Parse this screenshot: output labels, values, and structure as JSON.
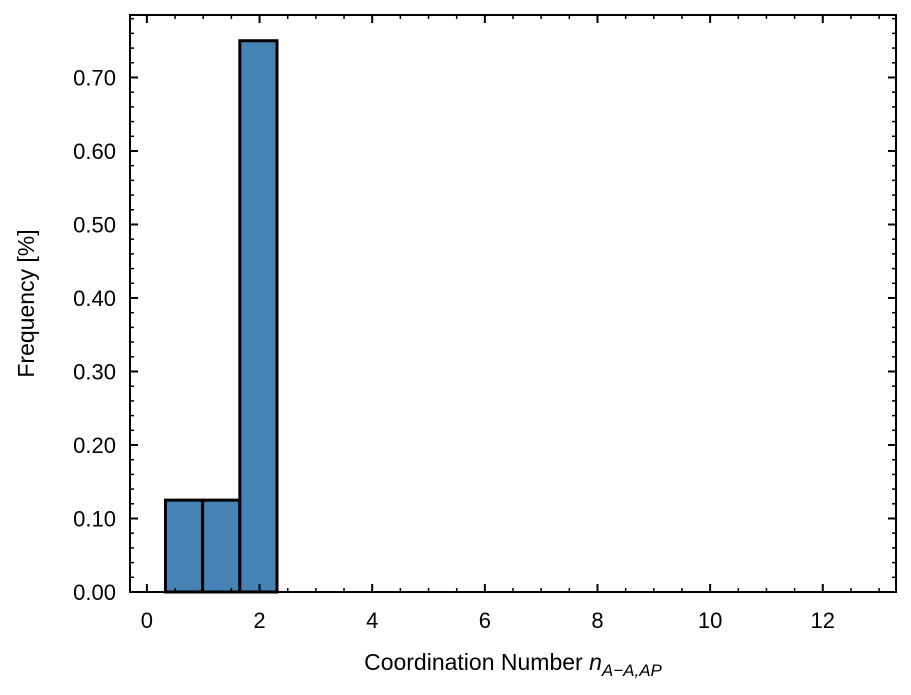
{
  "chart_data": {
    "type": "bar",
    "title": "",
    "xlabel_main": "Coordination Number ",
    "xlabel_symbol": "n",
    "xlabel_subscript": "A−A,AP",
    "ylabel": "Frequency [%]",
    "xlim": [
      -0.3,
      13.3
    ],
    "ylim": [
      0.0,
      0.785
    ],
    "xticks": [
      0,
      2,
      4,
      6,
      8,
      10,
      12
    ],
    "xtick_labels": [
      "0",
      "2",
      "4",
      "6",
      "8",
      "10",
      "12"
    ],
    "yticks": [
      0.0,
      0.1,
      0.2,
      0.3,
      0.4,
      0.5,
      0.6,
      0.7
    ],
    "ytick_labels": [
      "0.00",
      "0.10",
      "0.20",
      "0.30",
      "0.40",
      "0.50",
      "0.60",
      "0.70"
    ],
    "bins": [
      {
        "x0": 0.33,
        "x1": 0.99,
        "value": 0.125
      },
      {
        "x0": 0.99,
        "x1": 1.65,
        "value": 0.125
      },
      {
        "x0": 1.65,
        "x1": 2.31,
        "value": 0.75
      },
      {
        "x0": 2.31,
        "x1": 12.67,
        "value": 0.0
      }
    ],
    "bar_color": "#4682b4",
    "edge_color": "#000000",
    "grid": false,
    "legend": "none"
  }
}
